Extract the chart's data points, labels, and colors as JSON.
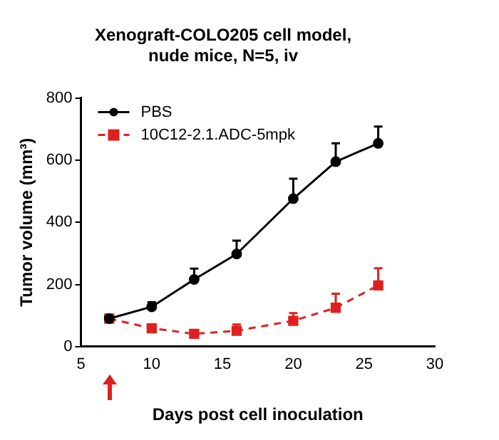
{
  "chart_data": {
    "type": "line",
    "title": "Xenograft-COLO205 cell model,\nnude mice, N=5, iv",
    "xlabel": "Days post cell inoculation",
    "ylabel": "Tumor volume (mm³)",
    "x": [
      7,
      10,
      13,
      16,
      20,
      23,
      26
    ],
    "series": [
      {
        "name": "PBS",
        "color": "#000000",
        "marker": "circle",
        "line_style": "solid",
        "values": [
          90,
          128,
          216,
          298,
          476,
          595,
          654
        ],
        "errors": [
          null,
          [
            128,
            143
          ],
          [
            216,
            251
          ],
          [
            298,
            341
          ],
          [
            476,
            540
          ],
          [
            595,
            654
          ],
          [
            654,
            708
          ]
        ]
      },
      {
        "name": "10C12-2.1.ADC-5mpk",
        "color": "#e02020",
        "marker": "square",
        "line_style": "dashed",
        "values": [
          90,
          59,
          41,
          51,
          83,
          125,
          197
        ],
        "errors": [
          null,
          null,
          null,
          [
            51,
            71
          ],
          [
            83,
            108
          ],
          [
            125,
            170
          ],
          [
            197,
            252
          ]
        ]
      }
    ],
    "xlim": [
      5,
      30
    ],
    "xticks": [
      5,
      10,
      15,
      20,
      25,
      30
    ],
    "ylim": [
      0,
      800
    ],
    "yticks": [
      0,
      200,
      400,
      600,
      800
    ],
    "grid": false,
    "legend": "top left"
  }
}
